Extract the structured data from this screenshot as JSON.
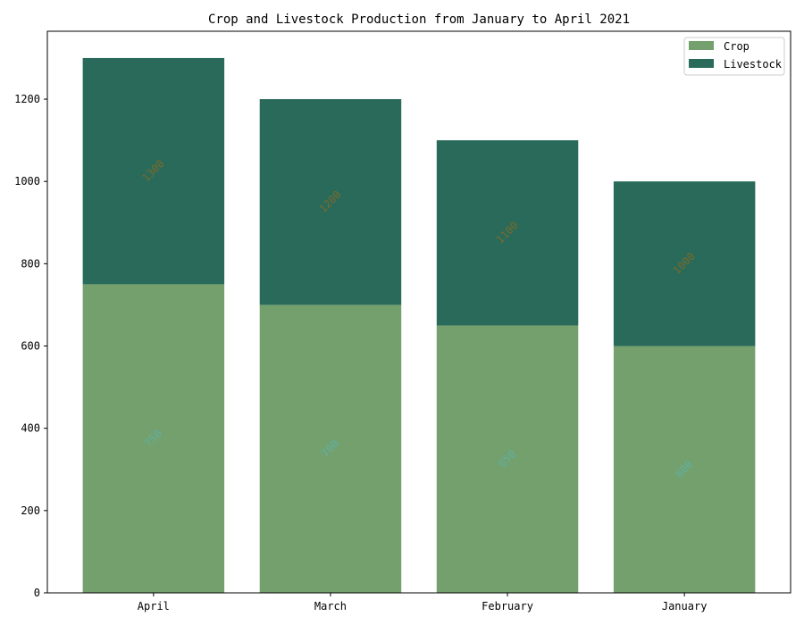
{
  "chart_data": {
    "type": "bar",
    "stacked": true,
    "title": "Crop and Livestock Production from January to April 2021",
    "xlabel": "",
    "ylabel": "",
    "categories": [
      "April",
      "March",
      "February",
      "January"
    ],
    "series": [
      {
        "name": "Crop",
        "values": [
          750,
          700,
          650,
          600
        ],
        "color": "#73a06d",
        "label_color": "#5fb0a4"
      },
      {
        "name": "Livestock",
        "values": [
          550,
          500,
          450,
          400
        ],
        "color": "#296a5b",
        "label_color": "#7a6a2a"
      }
    ],
    "data_labels": {
      "Crop": [
        "750",
        "700",
        "650",
        "600"
      ],
      "Livestock": [
        "1300",
        "1200",
        "1100",
        "1000"
      ]
    },
    "ylim": [
      0,
      1365
    ],
    "yticks": [
      0,
      200,
      400,
      600,
      800,
      1000,
      1200
    ],
    "grid": false,
    "legend_position": "top-right"
  }
}
